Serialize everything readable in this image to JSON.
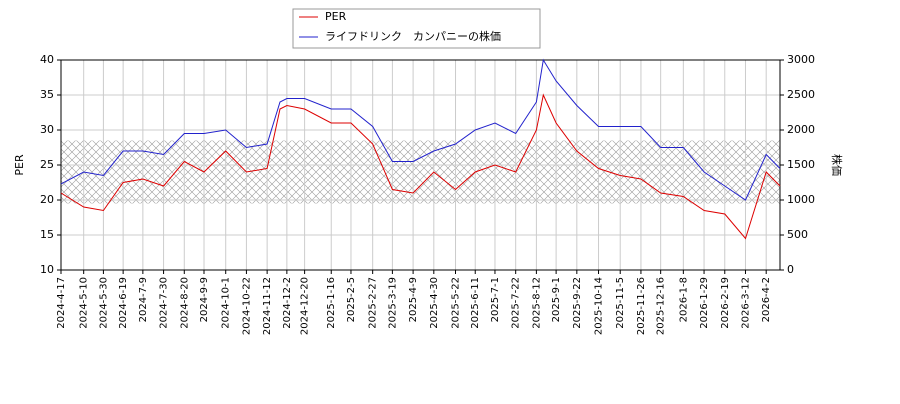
{
  "chart_data": {
    "type": "line",
    "legend_labels": [
      "PER",
      "ライフドリンク　カンパニーの株価"
    ],
    "ylabel": "PER",
    "y2label": "株価",
    "x": [
      "2024-4-17",
      "2024-5-10",
      "2024-5-30",
      "2024-6-19",
      "2024-7-9",
      "2024-7-30",
      "2024-8-20",
      "2024-9-9",
      "2024-10-1",
      "2024-10-22",
      "2024-11-12",
      "2024-11-25",
      "2024-12-2",
      "2024-12-20",
      "2025-1-16",
      "2025-2-5",
      "2025-2-27",
      "2025-3-19",
      "2025-4-9",
      "2025-4-30",
      "2025-5-22",
      "2025-6-11",
      "2025-7-1",
      "2025-7-22",
      "2025-8-12",
      "2025-8-19",
      "2025-9-1",
      "2025-9-22",
      "2025-10-14",
      "2025-11-5",
      "2025-11-26",
      "2025-12-16",
      "2026-1-8",
      "2026-1-29",
      "2026-2-19",
      "2026-3-12",
      "2026-4-2",
      "2026-4-16"
    ],
    "series": [
      {
        "name": "PER",
        "color": "#dd0000",
        "values": [
          21,
          19,
          18.5,
          22.5,
          23,
          22,
          25.5,
          24,
          27,
          24,
          24.5,
          33,
          33.5,
          33,
          31,
          31,
          28,
          21.5,
          21,
          24,
          21.5,
          24,
          25,
          24,
          30,
          35,
          31,
          27,
          24.5,
          23.5,
          23,
          21,
          20.5,
          18.5,
          18,
          14.5,
          24,
          22
        ]
      },
      {
        "name": "ライフドリンク　カンパニーの株価",
        "color": "#2222cc",
        "axis": "y2",
        "values": [
          1230,
          1400,
          1350,
          1700,
          1700,
          1650,
          1950,
          1950,
          2000,
          1750,
          1800,
          2400,
          2450,
          2450,
          2300,
          2300,
          2050,
          1550,
          1550,
          1700,
          1800,
          2000,
          2100,
          1950,
          2400,
          3000,
          2700,
          2350,
          2050,
          2050,
          2050,
          1750,
          1750,
          1400,
          1200,
          1000,
          1650,
          1450
        ]
      }
    ],
    "xlim": [
      "2024-4-17",
      "2026-4-16"
    ],
    "xticks": [
      "2024-4-17",
      "2024-5-10",
      "2024-5-30",
      "2024-6-19",
      "2024-7-9",
      "2024-7-30",
      "2024-8-20",
      "2024-9-9",
      "2024-10-1",
      "2024-10-22",
      "2024-11-12",
      "2024-12-2",
      "2024-12-20",
      "2025-1-16",
      "2025-2-5",
      "2025-2-27",
      "2025-3-19",
      "2025-4-9",
      "2025-4-30",
      "2025-5-22",
      "2025-6-11",
      "2025-7-1",
      "2025-7-22",
      "2025-8-12",
      "2025-9-1",
      "2025-9-22",
      "2025-10-14",
      "2025-11-5",
      "2025-11-26",
      "2025-12-16",
      "2026-1-8",
      "2026-1-29",
      "2026-2-19",
      "2026-3-12",
      "2026-4-2"
    ],
    "ylim": [
      10,
      40
    ],
    "yticks": [
      10,
      15,
      20,
      25,
      30,
      35,
      40
    ],
    "y2lim": [
      0,
      3000
    ],
    "y2ticks": [
      0,
      500,
      1000,
      1500,
      2000,
      2500,
      3000
    ],
    "band": [
      19.5,
      28.5
    ],
    "grid": true
  }
}
